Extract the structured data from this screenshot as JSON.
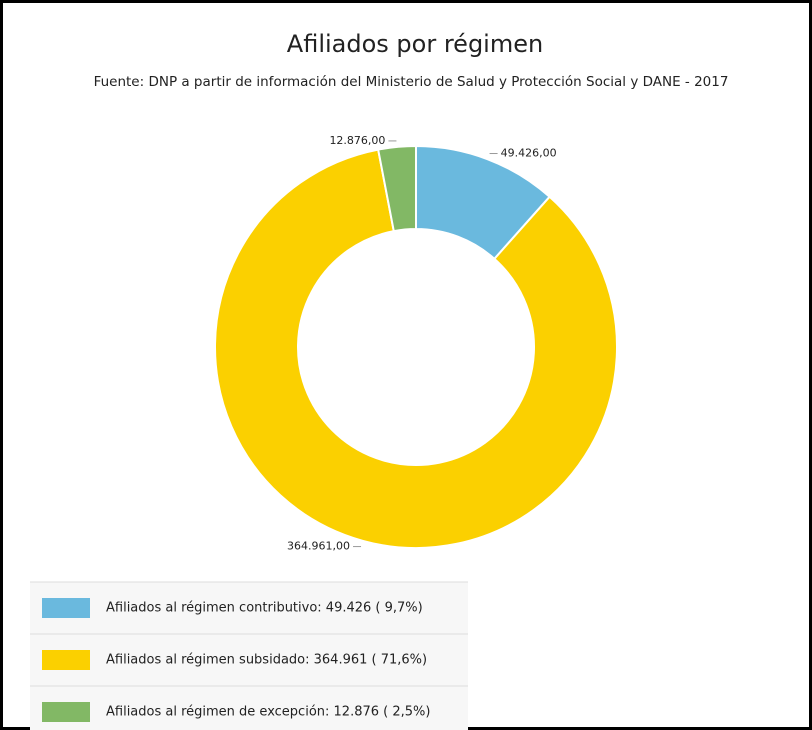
{
  "chart_data": {
    "type": "donut",
    "title": "Afiliados por régimen",
    "subtitle": "Fuente: DNP a partir de información del Ministerio de Salud y Protección Social y DANE - 2017",
    "categories": [
      "Afiliados al régimen contributivo:  49.426 ( 9,7%)",
      "Afiliados al régimen subsidado:  364.961 ( 71,6%)",
      "Afiliados al régimen de excepción:  12.876 ( 2,5%)"
    ],
    "values": [
      49426,
      364961,
      12876
    ],
    "value_labels": [
      "49.426,00",
      "364.961,00",
      "12.876,00"
    ],
    "colors": [
      "#6ab9de",
      "#fbd000",
      "#82b865"
    ]
  }
}
